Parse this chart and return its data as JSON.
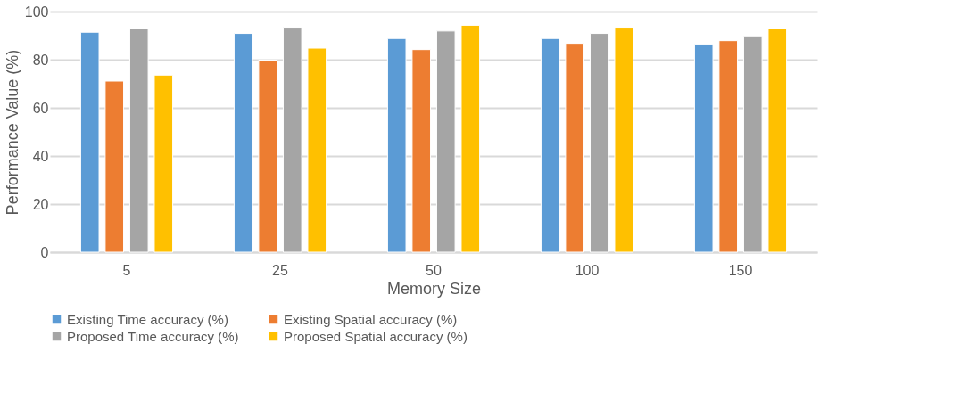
{
  "chart_data": {
    "type": "bar",
    "xlabel": "Memory Size",
    "ylabel": "Performance Value (%)",
    "categories": [
      "5",
      "25",
      "50",
      "100",
      "150"
    ],
    "series": [
      {
        "name": "Existing Time accuracy (%)",
        "color": "#5b9bd5",
        "values": [
          91.4,
          90.9,
          88.8,
          88.8,
          86.4
        ]
      },
      {
        "name": "Existing Spatial accuracy (%)",
        "color": "#ed7d31",
        "values": [
          71.1,
          79.8,
          84.2,
          86.8,
          87.9
        ]
      },
      {
        "name": "Proposed Time accuracy (%)",
        "color": "#a5a5a5",
        "values": [
          93.0,
          93.5,
          91.9,
          90.9,
          89.9
        ]
      },
      {
        "name": "Proposed Spatial accuracy (%)",
        "color": "#ffc000",
        "values": [
          73.6,
          84.8,
          94.3,
          93.5,
          92.8
        ]
      }
    ],
    "ylim": [
      0,
      100
    ],
    "yticks": [
      0,
      20,
      40,
      60,
      80,
      100
    ],
    "grid": "y",
    "legend": "bottom"
  }
}
